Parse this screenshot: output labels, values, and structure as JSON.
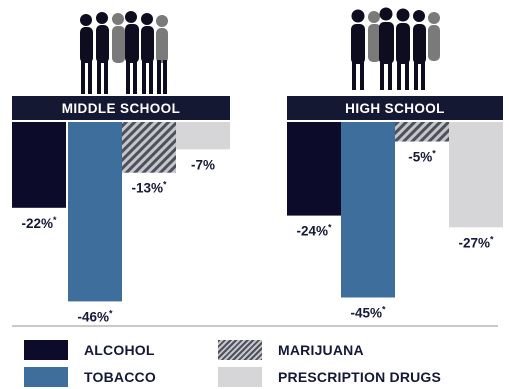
{
  "colors": {
    "alcohol": "#0d0b2a",
    "tobacco": "#3e6f9c",
    "marijuana_dark": "#4d5060",
    "marijuana_light": "#c6c6c6",
    "prescription": "#d6d6d8",
    "header_bg": "#151833",
    "header_text": "#ffffff",
    "label_text": "#141936"
  },
  "chart_data": [
    {
      "type": "bar",
      "title": "MIDDLE SCHOOL",
      "categories": [
        "ALCOHOL",
        "TOBACCO",
        "MARIJUANA",
        "PRESCRIPTION DRUGS"
      ],
      "values": [
        -22,
        -46,
        -13,
        -7
      ],
      "value_labels": [
        "-22%",
        "-46%",
        "-13%",
        "-7%"
      ],
      "marker": "*",
      "starred": [
        true,
        true,
        true,
        false
      ],
      "ylim": [
        -50,
        0
      ]
    },
    {
      "type": "bar",
      "title": "HIGH SCHOOL",
      "categories": [
        "ALCOHOL",
        "TOBACCO",
        "MARIJUANA",
        "PRESCRIPTION DRUGS"
      ],
      "values": [
        -24,
        -45,
        -5,
        -27
      ],
      "value_labels": [
        "-24%",
        "-45%",
        "-5%",
        "-27%"
      ],
      "marker": "*",
      "starred": [
        true,
        true,
        true,
        true
      ],
      "ylim": [
        -50,
        0
      ]
    }
  ],
  "legend": {
    "items": [
      {
        "label": "ALCOHOL",
        "color_key": "alcohol"
      },
      {
        "label": "TOBACCO",
        "color_key": "tobacco"
      },
      {
        "label": "MARIJUANA",
        "color_key": "marijuana"
      },
      {
        "label": "PRESCRIPTION DRUGS",
        "color_key": "prescription"
      }
    ]
  }
}
